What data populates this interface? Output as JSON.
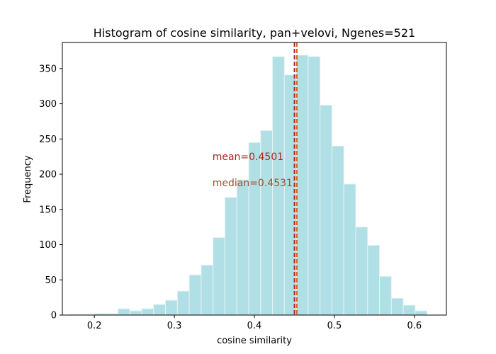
{
  "chart_data": {
    "type": "bar",
    "title": "Histogram of cosine similarity, pan+velovi, Ngenes=521",
    "xlabel": "cosine similarity",
    "ylabel": "Frequency",
    "xlim": [
      0.16,
      0.64
    ],
    "ylim": [
      0,
      387
    ],
    "xticks": [
      0.2,
      0.3,
      0.4,
      0.5,
      0.6
    ],
    "xtick_labels": [
      "0.2",
      "0.3",
      "0.4",
      "0.5",
      "0.6"
    ],
    "yticks": [
      0,
      50,
      100,
      150,
      200,
      250,
      300,
      350
    ],
    "ytick_labels": [
      "0",
      "50",
      "100",
      "150",
      "200",
      "250",
      "300",
      "350"
    ],
    "bin_start": 0.17,
    "bin_width": 0.01486,
    "values": [
      1,
      1,
      2,
      2,
      9,
      6,
      9,
      15,
      21,
      34,
      57,
      71,
      110,
      167,
      192,
      245,
      262,
      367,
      341,
      369,
      367,
      298,
      240,
      186,
      125,
      99,
      55,
      24,
      14,
      6
    ],
    "colors": {
      "bar_fill": "#b0e0e6",
      "bar_edge": "#e6f2f2",
      "mean_line": "#b22222",
      "median_line": "#d2691e",
      "mean_text": "#b22222",
      "median_text": "#a0522d"
    },
    "annotations": [
      {
        "kind": "mean",
        "text": "mean=0.4501",
        "value": 0.4501,
        "y": 225
      },
      {
        "kind": "median",
        "text": "median=0.4531",
        "value": 0.4531,
        "y": 188
      }
    ],
    "grid": false,
    "legend": "none"
  }
}
